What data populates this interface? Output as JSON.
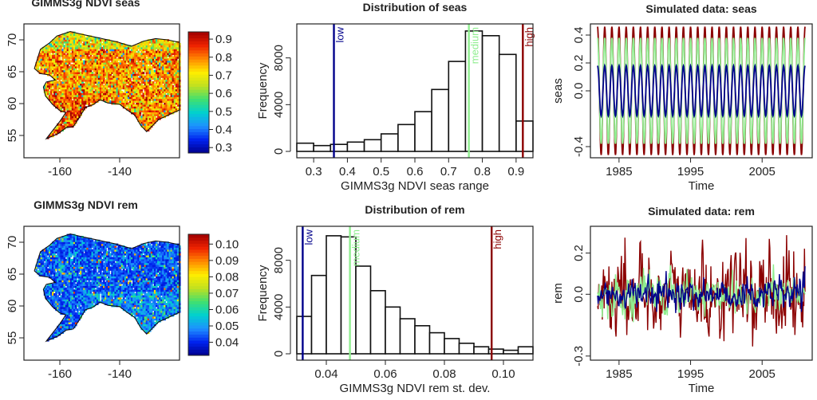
{
  "chart_data": [
    {
      "type": "heatmap",
      "title": "GIMMS3g NDVI seas",
      "x_ticks": [
        "-160",
        "-140"
      ],
      "x_tick_values": [
        -160,
        -140
      ],
      "xlim": [
        -172,
        -120
      ],
      "y_ticks": [
        "55",
        "60",
        "65",
        "70"
      ],
      "y_tick_values": [
        55,
        60,
        65,
        70
      ],
      "ylim": [
        51.5,
        72.5
      ],
      "colorbar_ticks": [
        "0.3",
        "0.4",
        "0.5",
        "0.6",
        "0.7",
        "0.8",
        "0.9"
      ],
      "colorbar_values": [
        0.3,
        0.4,
        0.5,
        0.6,
        0.7,
        0.8,
        0.9
      ],
      "colorbar_range": [
        0.27,
        0.94
      ],
      "palette": [
        "#00008b",
        "#0022ee",
        "#1e90ff",
        "#00d0d0",
        "#40e070",
        "#c0e020",
        "#ffee00",
        "#ff8800",
        "#ee2200",
        "#a00000"
      ],
      "dominant_level": 0.8
    },
    {
      "type": "bar",
      "title": "Distribution of seas",
      "xlabel": "GIMMS3g NDVI seas range",
      "ylabel": "Frequency",
      "x_ticks": [
        "0.3",
        "0.4",
        "0.5",
        "0.6",
        "0.7",
        "0.8",
        "0.9"
      ],
      "x_tick_values": [
        0.3,
        0.4,
        0.5,
        0.6,
        0.7,
        0.8,
        0.9
      ],
      "xlim": [
        0.25,
        0.95
      ],
      "y_ticks": [
        "0",
        "4000",
        "8000"
      ],
      "y_tick_values": [
        0,
        4000,
        8000
      ],
      "ylim": [
        0,
        10500
      ],
      "bin_edges": [
        0.25,
        0.3,
        0.35,
        0.4,
        0.45,
        0.5,
        0.55,
        0.6,
        0.65,
        0.7,
        0.75,
        0.8,
        0.85,
        0.9,
        0.95
      ],
      "values": [
        700,
        500,
        600,
        800,
        1000,
        1500,
        2300,
        3400,
        5300,
        7700,
        10300,
        9900,
        8300,
        2600
      ],
      "markers": [
        {
          "label": "low",
          "x": 0.36,
          "color": "#00008b"
        },
        {
          "label": "medium",
          "x": 0.76,
          "color": "#90ee90"
        },
        {
          "label": "high",
          "x": 0.92,
          "color": "#8b0000"
        }
      ]
    },
    {
      "type": "line",
      "title": "Simulated data: seas",
      "xlabel": "Time",
      "ylabel": "seas",
      "x_ticks": [
        "1985",
        "1995",
        "2005"
      ],
      "x_tick_values": [
        1985,
        1995,
        2005
      ],
      "xlim": [
        1981,
        2012
      ],
      "y_ticks": [
        "-0.4",
        "0.0",
        "0.2",
        "0.4"
      ],
      "y_tick_values": [
        -0.4,
        0.0,
        0.2,
        0.4
      ],
      "ylim": [
        -0.48,
        0.48
      ],
      "start": 1982,
      "end": 2011,
      "series": [
        {
          "name": "high",
          "amplitude": 0.46,
          "color": "#8b0000"
        },
        {
          "name": "medium",
          "amplitude": 0.38,
          "color": "#90ee90"
        },
        {
          "name": "low",
          "amplitude": 0.18,
          "color": "#00008b"
        }
      ]
    },
    {
      "type": "heatmap",
      "title": "GIMMS3g NDVI rem",
      "x_ticks": [
        "-160",
        "-140"
      ],
      "x_tick_values": [
        -160,
        -140
      ],
      "xlim": [
        -172,
        -120
      ],
      "y_ticks": [
        "55",
        "60",
        "65",
        "70"
      ],
      "y_tick_values": [
        55,
        60,
        65,
        70
      ],
      "ylim": [
        51.5,
        72.5
      ],
      "colorbar_ticks": [
        "0.04",
        "0.05",
        "0.06",
        "0.07",
        "0.08",
        "0.09",
        "0.10"
      ],
      "colorbar_values": [
        0.04,
        0.05,
        0.06,
        0.07,
        0.08,
        0.09,
        0.1
      ],
      "colorbar_range": [
        0.032,
        0.106
      ],
      "palette": [
        "#00008b",
        "#0022ee",
        "#1e90ff",
        "#00d0d0",
        "#40e070",
        "#c0e020",
        "#ffee00",
        "#ff8800",
        "#ee2200",
        "#a00000"
      ],
      "dominant_level": 0.04
    },
    {
      "type": "bar",
      "title": "Distribution of rem",
      "xlabel": "GIMMS3g NDVI rem st. dev.",
      "ylabel": "Frequency",
      "x_ticks": [
        "0.04",
        "0.06",
        "0.08",
        "0.10"
      ],
      "x_tick_values": [
        0.04,
        0.06,
        0.08,
        0.1
      ],
      "xlim": [
        0.03,
        0.11
      ],
      "y_ticks": [
        "0",
        "4000",
        "8000"
      ],
      "y_tick_values": [
        0,
        4000,
        8000
      ],
      "ylim": [
        0,
        10500
      ],
      "bin_edges": [
        0.03,
        0.035,
        0.04,
        0.045,
        0.05,
        0.055,
        0.06,
        0.065,
        0.07,
        0.075,
        0.08,
        0.085,
        0.09,
        0.095,
        0.1,
        0.105,
        0.11
      ],
      "values": [
        3200,
        6700,
        10100,
        10000,
        7500,
        5400,
        4000,
        3000,
        2400,
        1800,
        1300,
        900,
        600,
        400,
        300,
        600
      ],
      "markers": [
        {
          "label": "low",
          "x": 0.032,
          "color": "#00008b"
        },
        {
          "label": "medium",
          "x": 0.048,
          "color": "#90ee90"
        },
        {
          "label": "high",
          "x": 0.096,
          "color": "#8b0000"
        }
      ]
    },
    {
      "type": "line",
      "title": "Simulated data: rem",
      "xlabel": "Time",
      "ylabel": "rem",
      "x_ticks": [
        "1985",
        "1995",
        "2005"
      ],
      "x_tick_values": [
        1985,
        1995,
        2005
      ],
      "xlim": [
        1981,
        2012
      ],
      "y_ticks": [
        "-0.3",
        "0.0",
        "0.2"
      ],
      "y_tick_values": [
        -0.3,
        0.0,
        0.2
      ],
      "ylim": [
        -0.32,
        0.33
      ],
      "start": 1982,
      "end": 2011,
      "series": [
        {
          "name": "high",
          "sd": 0.096,
          "color": "#8b0000"
        },
        {
          "name": "medium",
          "sd": 0.048,
          "color": "#90ee90"
        },
        {
          "name": "low",
          "sd": 0.032,
          "color": "#00008b"
        }
      ]
    }
  ]
}
